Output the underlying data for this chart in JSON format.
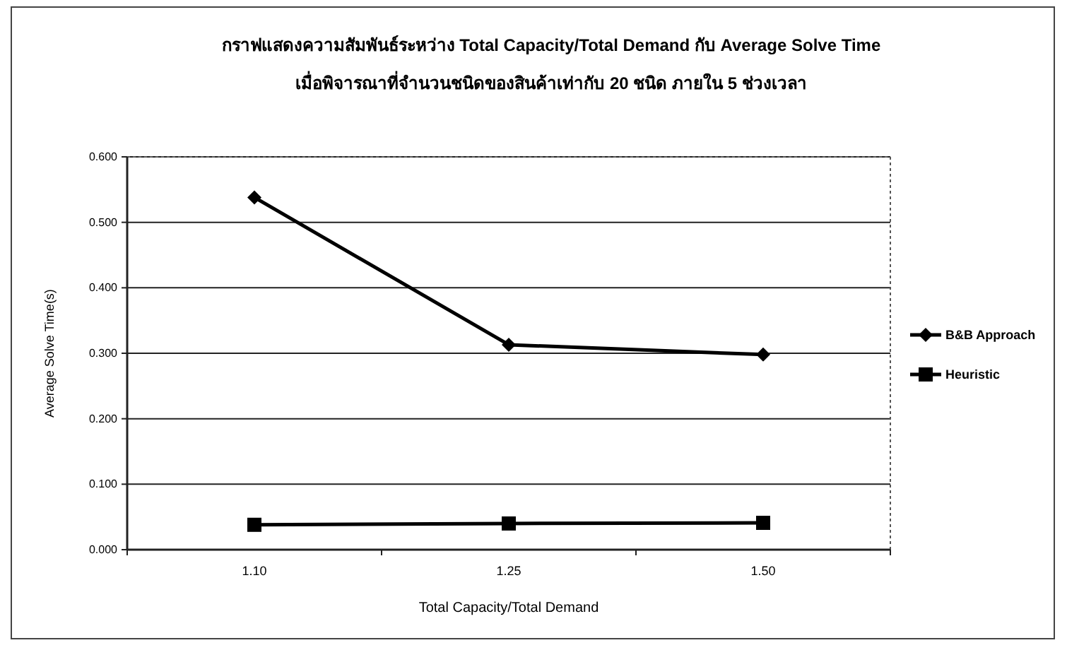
{
  "chart_data": {
    "type": "line",
    "title": "กราฟแสดงความสัมพันธ์ระหว่าง Total Capacity/Total Demand กับ Average Solve Time",
    "subtitle": "เมื่อพิจารณาที่จำนวนชนิดของสินค้าเท่ากับ 20 ชนิด ภายใน 5 ช่วงเวลา",
    "xlabel": "Total Capacity/Total Demand",
    "ylabel": "Average Solve Time(s)",
    "categories": [
      "1.10",
      "1.25",
      "1.50"
    ],
    "series": [
      {
        "name": "B&B Approach",
        "color": "#000000",
        "marker": "diamond",
        "values": [
          0.538,
          0.313,
          0.298
        ]
      },
      {
        "name": "Heuristic",
        "color": "#000000",
        "marker": "square",
        "values": [
          0.038,
          0.04,
          0.041
        ]
      }
    ],
    "ylim": [
      0,
      0.6
    ],
    "yticks": [
      {
        "value": 0,
        "label": "0.000"
      },
      {
        "value": 0.1,
        "label": "0.100"
      },
      {
        "value": 0.2,
        "label": "0.200"
      },
      {
        "value": 0.3,
        "label": "0.300"
      },
      {
        "value": 0.4,
        "label": "0.400"
      },
      {
        "value": 0.5,
        "label": "0.500"
      },
      {
        "value": 0.6,
        "label": "0.600"
      }
    ],
    "grid": "y",
    "legend": "right",
    "line_style": "solid"
  }
}
